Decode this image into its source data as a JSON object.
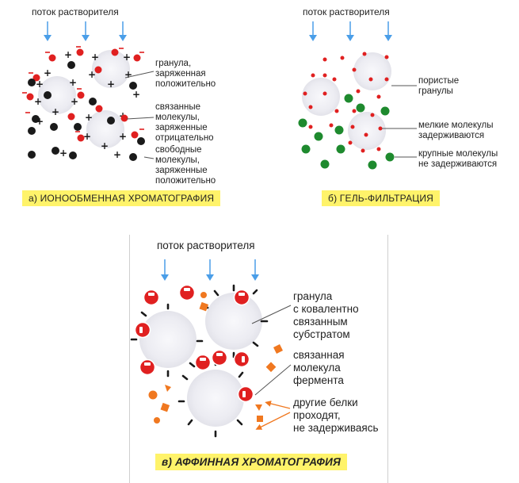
{
  "panel_a": {
    "flow_label": "поток растворителя",
    "label_granule": "гранула,\nзаряженная\nположительно",
    "label_bound": "связанные\nмолекулы,\nзаряженные\nотрицательно",
    "label_free": "свободные\nмолекулы,\nзаряженные\nположительно",
    "caption": "а) ИОНООБМЕННАЯ ХРОМАТОГРАФИЯ"
  },
  "panel_b": {
    "flow_label": "поток растворителя",
    "label_porous": "пористые\nгранулы",
    "label_small": "мелкие молекулы\nзадерживаются",
    "label_large": "крупные молекулы\nне задерживаются",
    "caption": "б) ГЕЛЬ-ФИЛЬТРАЦИЯ"
  },
  "panel_c": {
    "flow_label": "поток растворителя",
    "label_granule": "гранула\nс ковалентно\nсвязанным\nсубстратом",
    "label_enzyme": "связанная\nмолекула\nфермента",
    "label_other": "другие белки\nпроходят,\nне задерживаясь",
    "caption": "в) АФФИННАЯ ХРОМАТОГРАФИЯ"
  },
  "colors": {
    "arrow": "#4a9ee8",
    "red": "#e02020",
    "black": "#1a1a1a",
    "green": "#1e8a2e",
    "orange": "#f07820",
    "granule": "#ececf2",
    "caption_bg": "#fff36a"
  }
}
